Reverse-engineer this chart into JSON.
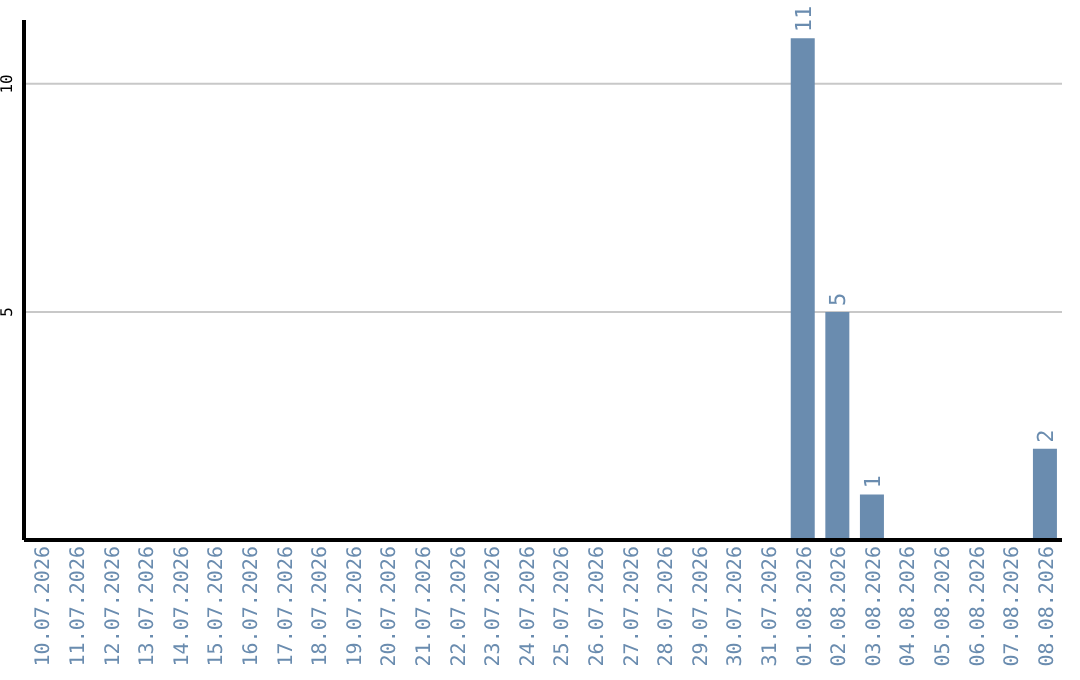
{
  "chart_data": {
    "type": "bar",
    "categories": [
      "10.07.2026",
      "11.07.2026",
      "12.07.2026",
      "13.07.2026",
      "14.07.2026",
      "15.07.2026",
      "16.07.2026",
      "17.07.2026",
      "18.07.2026",
      "19.07.2026",
      "20.07.2026",
      "21.07.2026",
      "22.07.2026",
      "23.07.2026",
      "24.07.2026",
      "25.07.2026",
      "26.07.2026",
      "27.07.2026",
      "28.07.2026",
      "29.07.2026",
      "30.07.2026",
      "31.07.2026",
      "01.08.2026",
      "02.08.2026",
      "03.08.2026",
      "04.08.2026",
      "05.08.2026",
      "06.08.2026",
      "07.08.2026",
      "08.08.2026"
    ],
    "values": [
      0,
      0,
      0,
      0,
      0,
      0,
      0,
      0,
      0,
      0,
      0,
      0,
      0,
      0,
      0,
      0,
      0,
      0,
      0,
      0,
      0,
      0,
      11,
      5,
      1,
      0,
      0,
      0,
      0,
      2
    ],
    "value_labels": [
      null,
      null,
      null,
      null,
      null,
      null,
      null,
      null,
      null,
      null,
      null,
      null,
      null,
      null,
      null,
      null,
      null,
      null,
      null,
      null,
      null,
      null,
      "11",
      "5",
      "1",
      null,
      null,
      null,
      null,
      "2"
    ],
    "color": "#6a8caf",
    "ylim": [
      0,
      11.4
    ],
    "yticks": [
      5,
      10
    ],
    "grid": "y",
    "legend": false
  }
}
